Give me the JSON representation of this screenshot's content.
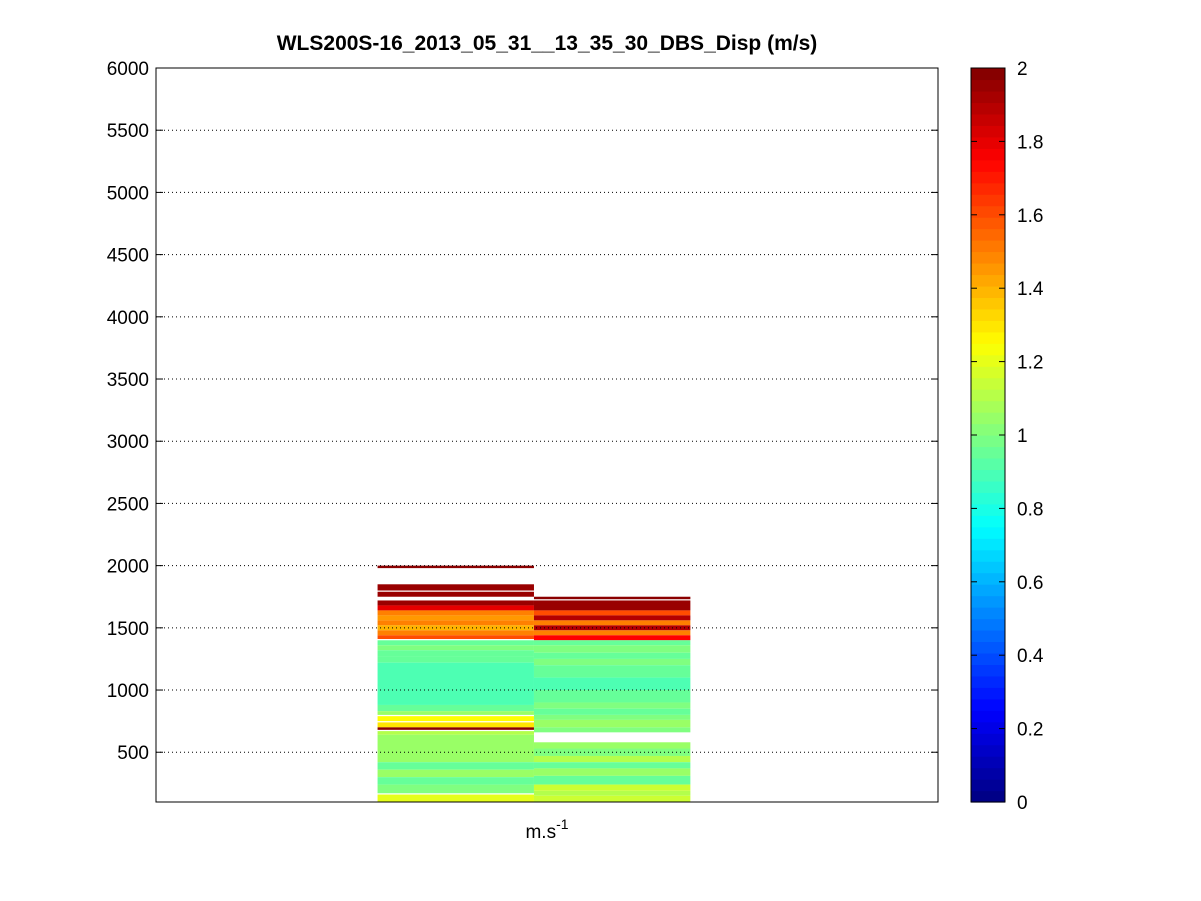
{
  "chart_data": {
    "type": "heatmap",
    "title": "WLS200S-16_2013_05_31__13_35_30_DBS_Disp (m/s)",
    "xlabel_base": "m.s",
    "xlabel_sup": "-1",
    "ylabel": "",
    "ylim": [
      100,
      6000
    ],
    "yticks": [
      500,
      1000,
      1500,
      2000,
      2500,
      3000,
      3500,
      4000,
      4500,
      5000,
      5500,
      6000
    ],
    "ygrid": "dotted",
    "xlim": [
      0,
      3
    ],
    "columns": [
      {
        "x": [
          0.85,
          1.45
        ],
        "rows": [
          {
            "y": [
              2000,
              1980
            ],
            "v": 1.98
          },
          {
            "y": [
              1850,
              1800
            ],
            "v": 1.95
          },
          {
            "y": [
              1790,
              1750
            ],
            "v": 1.95
          },
          {
            "y": [
              1720,
              1680
            ],
            "v": 1.95
          },
          {
            "y": [
              1680,
              1640
            ],
            "v": 1.8
          },
          {
            "y": [
              1640,
              1600
            ],
            "v": 1.5
          },
          {
            "y": [
              1600,
              1560
            ],
            "v": 1.45
          },
          {
            "y": [
              1560,
              1520
            ],
            "v": 1.5
          },
          {
            "y": [
              1520,
              1480
            ],
            "v": 1.4
          },
          {
            "y": [
              1480,
              1440
            ],
            "v": 1.5
          },
          {
            "y": [
              1440,
              1410
            ],
            "v": 1.6
          },
          {
            "y": [
              1400,
              1360
            ],
            "v": 0.95
          },
          {
            "y": [
              1360,
              1320
            ],
            "v": 1.0
          },
          {
            "y": [
              1320,
              1270
            ],
            "v": 0.95
          },
          {
            "y": [
              1270,
              1220
            ],
            "v": 0.95
          },
          {
            "y": [
              1220,
              880
            ],
            "v": 0.9
          },
          {
            "y": [
              880,
              830
            ],
            "v": 0.95
          },
          {
            "y": [
              830,
              800
            ],
            "v": 1.05
          },
          {
            "y": [
              790,
              750
            ],
            "v": 1.25
          },
          {
            "y": [
              740,
              700
            ],
            "v": 1.3
          },
          {
            "y": [
              700,
              680
            ],
            "v": 1.98
          },
          {
            "y": [
              670,
              640
            ],
            "v": 1.1
          },
          {
            "y": [
              640,
              420
            ],
            "v": 1.05
          },
          {
            "y": [
              420,
              360
            ],
            "v": 0.95
          },
          {
            "y": [
              360,
              300
            ],
            "v": 1.05
          },
          {
            "y": [
              300,
              240
            ],
            "v": 0.95
          },
          {
            "y": [
              240,
              170
            ],
            "v": 1.0
          },
          {
            "y": [
              160,
              100
            ],
            "v": 1.2
          }
        ]
      },
      {
        "x": [
          1.45,
          2.05
        ],
        "rows": [
          {
            "y": [
              1750,
              1730
            ],
            "v": 1.98
          },
          {
            "y": [
              1720,
              1640
            ],
            "v": 1.95
          },
          {
            "y": [
              1640,
              1600
            ],
            "v": 1.6
          },
          {
            "y": [
              1600,
              1560
            ],
            "v": 1.9
          },
          {
            "y": [
              1560,
              1520
            ],
            "v": 1.5
          },
          {
            "y": [
              1520,
              1480
            ],
            "v": 1.9
          },
          {
            "y": [
              1480,
              1440
            ],
            "v": 1.5
          },
          {
            "y": [
              1440,
              1400
            ],
            "v": 1.75
          },
          {
            "y": [
              1400,
              1360
            ],
            "v": 0.95
          },
          {
            "y": [
              1360,
              1300
            ],
            "v": 1.0
          },
          {
            "y": [
              1300,
              1250
            ],
            "v": 0.95
          },
          {
            "y": [
              1250,
              1200
            ],
            "v": 1.0
          },
          {
            "y": [
              1200,
              1100
            ],
            "v": 0.95
          },
          {
            "y": [
              1100,
              1000
            ],
            "v": 0.9
          },
          {
            "y": [
              1000,
              900
            ],
            "v": 0.95
          },
          {
            "y": [
              900,
              850
            ],
            "v": 1.0
          },
          {
            "y": [
              850,
              800
            ],
            "v": 0.95
          },
          {
            "y": [
              800,
              760
            ],
            "v": 1.0
          },
          {
            "y": [
              760,
              700
            ],
            "v": 1.05
          },
          {
            "y": [
              700,
              660
            ],
            "v": 1.0
          },
          {
            "y": [
              580,
              530
            ],
            "v": 1.05
          },
          {
            "y": [
              530,
              470
            ],
            "v": 1.0
          },
          {
            "y": [
              470,
              420
            ],
            "v": 1.1
          },
          {
            "y": [
              420,
              370
            ],
            "v": 0.95
          },
          {
            "y": [
              370,
              310
            ],
            "v": 1.05
          },
          {
            "y": [
              310,
              240
            ],
            "v": 0.95
          },
          {
            "y": [
              240,
              190
            ],
            "v": 1.15
          },
          {
            "y": [
              190,
              150
            ],
            "v": 1.1
          },
          {
            "y": [
              150,
              100
            ],
            "v": 1.15
          }
        ]
      }
    ],
    "colorbar": {
      "colormap": "jet",
      "range": [
        0,
        2
      ],
      "ticks": [
        0,
        0.2,
        0.4,
        0.6,
        0.8,
        1,
        1.2,
        1.4,
        1.6,
        1.8,
        2
      ],
      "tick_labels": [
        "0",
        "0.2",
        "0.4",
        "0.6",
        "0.8",
        "1",
        "1.2",
        "1.4",
        "1.6",
        "1.8",
        "2"
      ]
    }
  }
}
